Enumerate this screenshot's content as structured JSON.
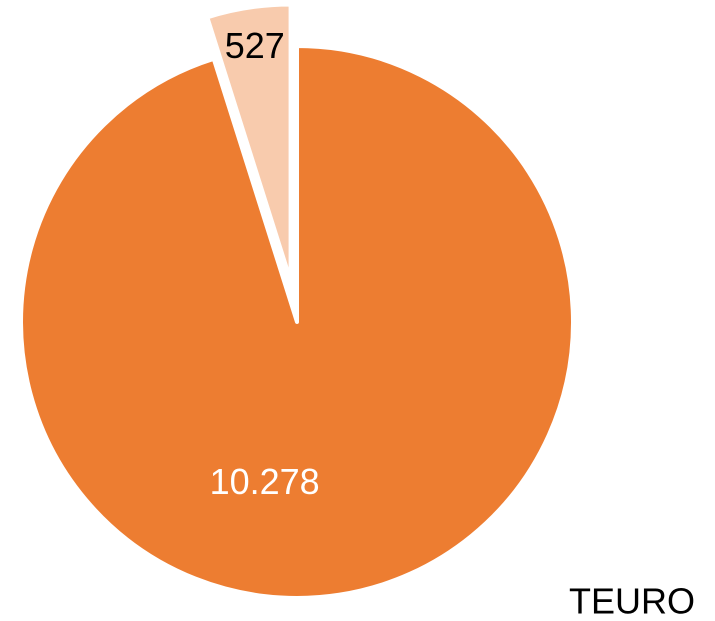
{
  "chart_data": {
    "type": "pie",
    "values": [
      10278,
      527
    ],
    "value_labels": [
      "10.278",
      "527"
    ],
    "colors": [
      "#ED7D31",
      "#F8CBAD"
    ],
    "label_colors": [
      "#ffffff",
      "#000000"
    ],
    "exploded": [
      false,
      true
    ],
    "unit": "TEURO"
  }
}
